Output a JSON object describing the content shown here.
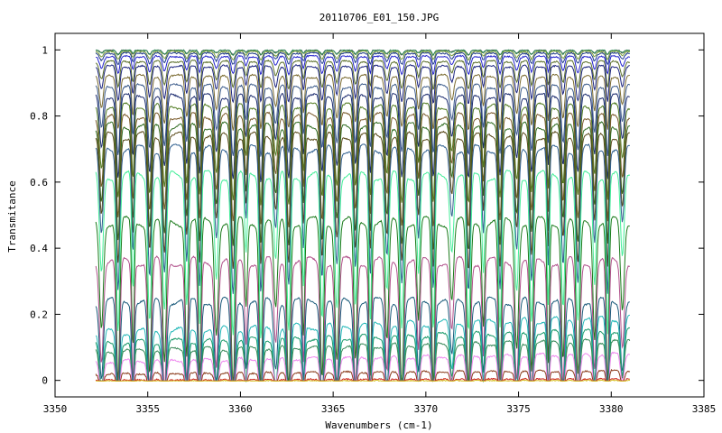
{
  "chart_data": {
    "type": "line",
    "title": "20110706_E01_150.JPG",
    "xlabel": "Wavenumbers (cm-1)",
    "ylabel": "Transmitance",
    "xlim": [
      3350,
      3385
    ],
    "ylim": [
      -0.05,
      1.05
    ],
    "x_ticks": [
      "3350",
      "3355",
      "3360",
      "3365",
      "3370",
      "3375",
      "3380",
      "3385"
    ],
    "y_ticks": [
      "0",
      "0.2",
      "0.4",
      "0.6",
      "0.8",
      "1"
    ],
    "x_range": [
      3352.2,
      3381.0
    ],
    "grid": false,
    "legend": "none",
    "absorption_lines_cm1": [
      3352.5,
      3353.4,
      3354.2,
      3355.1,
      3355.9,
      3357.1,
      3357.8,
      3358.7,
      3359.6,
      3360.3,
      3361.1,
      3361.9,
      3362.6,
      3363.4,
      3364.4,
      3365.2,
      3366.2,
      3367.0,
      3367.9,
      3368.7,
      3369.6,
      3370.4,
      3371.4,
      3372.3,
      3373.1,
      3374.0,
      3374.9,
      3375.7,
      3376.6,
      3377.4,
      3378.2,
      3379.1,
      3379.8,
      3380.6
    ],
    "series": [
      {
        "baseline": 1.0,
        "color": "#555555"
      },
      {
        "baseline": 1.0,
        "color": "#2e8b57"
      },
      {
        "baseline": 0.995,
        "color": "#7b9e3a"
      },
      {
        "baseline": 0.99,
        "color": "#1f3b8a"
      },
      {
        "baseline": 0.98,
        "color": "#2222cc"
      },
      {
        "baseline": 0.965,
        "color": "#5a6e2a"
      },
      {
        "baseline": 0.95,
        "color": "#1a237e"
      },
      {
        "baseline": 0.92,
        "color": "#7a6a2f"
      },
      {
        "baseline": 0.89,
        "color": "#3a5a8a"
      },
      {
        "baseline": 0.86,
        "color": "#1a2a6e"
      },
      {
        "baseline": 0.83,
        "color": "#4f7a1f"
      },
      {
        "baseline": 0.8,
        "color": "#7a5a2a"
      },
      {
        "baseline": 0.77,
        "color": "#2e6b1f"
      },
      {
        "baseline": 0.74,
        "color": "#5a4a1a"
      },
      {
        "baseline": 0.7,
        "color": "#2f5f8f"
      },
      {
        "baseline": 0.62,
        "color": "#44ee99"
      },
      {
        "baseline": 0.48,
        "color": "#1a7a1a"
      },
      {
        "baseline": 0.36,
        "color": "#b0508a"
      },
      {
        "baseline": 0.24,
        "color": "#1a5a7a"
      },
      {
        "baseline": 0.19,
        "color": "#22b8b8"
      },
      {
        "baseline": 0.15,
        "color": "#1a9a6a"
      },
      {
        "baseline": 0.12,
        "color": "#3a8a5a"
      },
      {
        "baseline": 0.08,
        "color": "#ee88ee"
      },
      {
        "baseline": 0.03,
        "color": "#8a3a1a"
      },
      {
        "baseline": 0.005,
        "color": "#cc2222"
      },
      {
        "baseline": 0.0,
        "color": "#d6c020"
      }
    ]
  }
}
